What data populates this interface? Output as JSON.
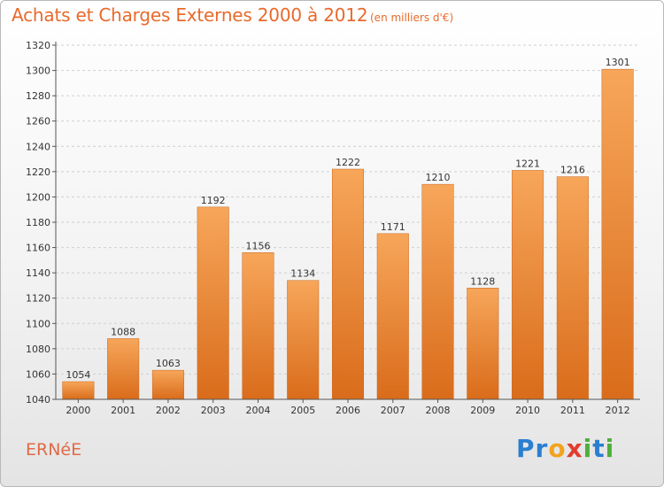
{
  "header": {
    "title": "Achats et Charges Externes 2000 à 2012",
    "subtitle": "(en milliers d'€)"
  },
  "footer": {
    "place": "ERNéE",
    "logo_letters": [
      {
        "char": "P",
        "color": "#2a7fd0"
      },
      {
        "char": "r",
        "color": "#2a7fd0"
      },
      {
        "char": "o",
        "color": "#f2a31f"
      },
      {
        "char": "x",
        "color": "#e23b2e"
      },
      {
        "char": "i",
        "color": "#4fae3c"
      },
      {
        "char": "t",
        "color": "#2a7fd0"
      },
      {
        "char": "i",
        "color": "#4fae3c"
      }
    ]
  },
  "chart_data": {
    "type": "bar",
    "categories": [
      "2000",
      "2001",
      "2002",
      "2003",
      "2004",
      "2005",
      "2006",
      "2007",
      "2008",
      "2009",
      "2010",
      "2011",
      "2012"
    ],
    "values": [
      1054,
      1088,
      1063,
      1192,
      1156,
      1134,
      1222,
      1171,
      1210,
      1128,
      1221,
      1216,
      1301
    ],
    "ylim": [
      1040,
      1320
    ],
    "yticks": [
      1040,
      1060,
      1080,
      1100,
      1120,
      1140,
      1160,
      1180,
      1200,
      1220,
      1240,
      1260,
      1280,
      1300,
      1320
    ],
    "grid": true,
    "colors": {
      "bar_top": "#f7a65a",
      "bar_bottom": "#d96c1b",
      "grid": "#d0d0d0",
      "axis": "#555555"
    }
  }
}
